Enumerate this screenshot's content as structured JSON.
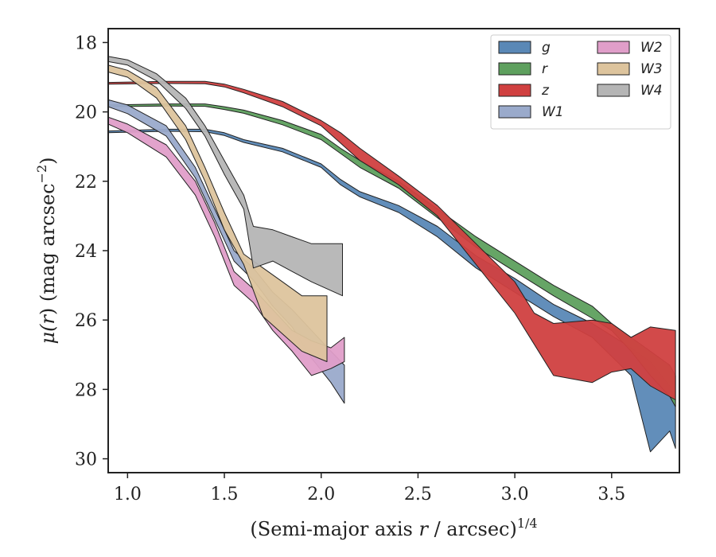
{
  "chart_data": {
    "type": "area",
    "xlabel_main": "(Semi-major axis ",
    "xlabel_var": "r",
    "xlabel_tail": " / arcsec)",
    "xlabel_exp": "1/4",
    "ylabel_main": "μ(",
    "ylabel_var": "r",
    "ylabel_tail": ") (mag arcsec",
    "ylabel_exp": "−2",
    "ylabel_close": ")",
    "xlim": [
      0.9,
      3.85
    ],
    "ylim": [
      30.4,
      17.6
    ],
    "y_inverted": true,
    "xticks": [
      "1.0",
      "1.5",
      "2.0",
      "2.5",
      "3.0",
      "3.5"
    ],
    "xtick_values": [
      1.0,
      1.5,
      2.0,
      2.5,
      3.0,
      3.5
    ],
    "yticks": [
      "18",
      "20",
      "22",
      "24",
      "26",
      "28",
      "30"
    ],
    "ytick_values": [
      18,
      20,
      22,
      24,
      26,
      28,
      30
    ],
    "grid": false,
    "legend_position": "top-right",
    "series": [
      {
        "name": "g",
        "color": "#5a88b6",
        "upper": [
          [
            0.9,
            20.55
          ],
          [
            1.2,
            20.5
          ],
          [
            1.4,
            20.5
          ],
          [
            1.5,
            20.6
          ],
          [
            1.6,
            20.8
          ],
          [
            1.8,
            21.05
          ],
          [
            2.0,
            21.5
          ],
          [
            2.1,
            21.95
          ],
          [
            2.2,
            22.3
          ],
          [
            2.4,
            22.7
          ],
          [
            2.6,
            23.3
          ],
          [
            2.8,
            24.15
          ],
          [
            3.0,
            24.8
          ],
          [
            3.2,
            25.55
          ],
          [
            3.4,
            26.1
          ],
          [
            3.6,
            26.8
          ],
          [
            3.7,
            27.2
          ],
          [
            3.8,
            27.9
          ],
          [
            3.83,
            28.3
          ]
        ],
        "lower": [
          [
            0.9,
            20.6
          ],
          [
            1.2,
            20.56
          ],
          [
            1.4,
            20.57
          ],
          [
            1.5,
            20.68
          ],
          [
            1.6,
            20.88
          ],
          [
            1.8,
            21.15
          ],
          [
            2.0,
            21.6
          ],
          [
            2.1,
            22.1
          ],
          [
            2.2,
            22.45
          ],
          [
            2.4,
            22.9
          ],
          [
            2.6,
            23.6
          ],
          [
            2.8,
            24.5
          ],
          [
            3.0,
            25.2
          ],
          [
            3.2,
            25.9
          ],
          [
            3.4,
            26.5
          ],
          [
            3.6,
            27.6
          ],
          [
            3.7,
            29.8
          ],
          [
            3.8,
            29.2
          ],
          [
            3.83,
            29.7
          ]
        ]
      },
      {
        "name": "r",
        "color": "#5ea05e",
        "upper": [
          [
            0.9,
            19.8
          ],
          [
            1.2,
            19.77
          ],
          [
            1.4,
            19.77
          ],
          [
            1.5,
            19.85
          ],
          [
            1.6,
            19.95
          ],
          [
            1.8,
            20.25
          ],
          [
            2.0,
            20.65
          ],
          [
            2.1,
            21.05
          ],
          [
            2.2,
            21.4
          ],
          [
            2.4,
            22.0
          ],
          [
            2.6,
            22.8
          ],
          [
            2.8,
            23.6
          ],
          [
            3.0,
            24.3
          ],
          [
            3.2,
            25.0
          ],
          [
            3.4,
            25.6
          ],
          [
            3.5,
            26.1
          ],
          [
            3.6,
            26.5
          ],
          [
            3.7,
            26.9
          ],
          [
            3.8,
            27.3
          ],
          [
            3.83,
            27.6
          ]
        ],
        "lower": [
          [
            0.9,
            19.85
          ],
          [
            1.2,
            19.83
          ],
          [
            1.4,
            19.84
          ],
          [
            1.5,
            19.93
          ],
          [
            1.6,
            20.04
          ],
          [
            1.8,
            20.37
          ],
          [
            2.0,
            20.8
          ],
          [
            2.1,
            21.2
          ],
          [
            2.2,
            21.6
          ],
          [
            2.4,
            22.2
          ],
          [
            2.6,
            23.05
          ],
          [
            2.8,
            23.9
          ],
          [
            3.0,
            24.6
          ],
          [
            3.2,
            25.3
          ],
          [
            3.4,
            25.95
          ],
          [
            3.5,
            26.3
          ],
          [
            3.6,
            26.9
          ],
          [
            3.7,
            27.6
          ],
          [
            3.8,
            28.2
          ],
          [
            3.83,
            28.5
          ]
        ]
      },
      {
        "name": "z",
        "color": "#d04040",
        "upper": [
          [
            0.9,
            19.15
          ],
          [
            1.2,
            19.12
          ],
          [
            1.4,
            19.12
          ],
          [
            1.5,
            19.2
          ],
          [
            1.6,
            19.35
          ],
          [
            1.8,
            19.7
          ],
          [
            2.0,
            20.25
          ],
          [
            2.1,
            20.6
          ],
          [
            2.2,
            21.05
          ],
          [
            2.4,
            21.85
          ],
          [
            2.6,
            22.7
          ],
          [
            2.8,
            23.8
          ],
          [
            3.0,
            24.9
          ],
          [
            3.1,
            25.8
          ],
          [
            3.2,
            26.1
          ],
          [
            3.4,
            26.0
          ],
          [
            3.5,
            26.1
          ],
          [
            3.6,
            26.5
          ],
          [
            3.7,
            26.2
          ],
          [
            3.83,
            26.3
          ]
        ],
        "lower": [
          [
            0.9,
            19.2
          ],
          [
            1.2,
            19.18
          ],
          [
            1.4,
            19.19
          ],
          [
            1.5,
            19.28
          ],
          [
            1.6,
            19.45
          ],
          [
            1.8,
            19.85
          ],
          [
            2.0,
            20.4
          ],
          [
            2.1,
            20.9
          ],
          [
            2.2,
            21.4
          ],
          [
            2.4,
            22.1
          ],
          [
            2.6,
            23.0
          ],
          [
            2.8,
            24.4
          ],
          [
            3.0,
            25.8
          ],
          [
            3.1,
            26.7
          ],
          [
            3.2,
            27.6
          ],
          [
            3.4,
            27.8
          ],
          [
            3.5,
            27.5
          ],
          [
            3.6,
            27.4
          ],
          [
            3.7,
            27.9
          ],
          [
            3.83,
            28.3
          ]
        ]
      },
      {
        "name": "W1",
        "color": "#9aaacb",
        "upper": [
          [
            0.9,
            19.65
          ],
          [
            1.0,
            19.8
          ],
          [
            1.2,
            20.4
          ],
          [
            1.35,
            21.6
          ],
          [
            1.45,
            22.8
          ],
          [
            1.55,
            24.0
          ],
          [
            1.65,
            24.5
          ],
          [
            1.75,
            25.2
          ],
          [
            1.85,
            25.7
          ],
          [
            1.95,
            26.3
          ],
          [
            2.05,
            26.9
          ],
          [
            2.12,
            27.3
          ]
        ],
        "lower": [
          [
            0.9,
            19.85
          ],
          [
            1.0,
            20.05
          ],
          [
            1.2,
            20.7
          ],
          [
            1.35,
            21.9
          ],
          [
            1.45,
            23.1
          ],
          [
            1.55,
            24.3
          ],
          [
            1.65,
            24.85
          ],
          [
            1.75,
            25.6
          ],
          [
            1.85,
            26.2
          ],
          [
            1.95,
            27.1
          ],
          [
            2.05,
            27.8
          ],
          [
            2.12,
            28.4
          ]
        ]
      },
      {
        "name": "W2",
        "color": "#e09ec9",
        "upper": [
          [
            0.9,
            20.15
          ],
          [
            1.0,
            20.35
          ],
          [
            1.2,
            20.95
          ],
          [
            1.35,
            22.0
          ],
          [
            1.45,
            23.2
          ],
          [
            1.55,
            24.6
          ],
          [
            1.65,
            25.1
          ],
          [
            1.75,
            25.7
          ],
          [
            1.85,
            26.3
          ],
          [
            1.95,
            26.6
          ],
          [
            2.05,
            26.8
          ],
          [
            2.12,
            26.5
          ]
        ],
        "lower": [
          [
            0.9,
            20.35
          ],
          [
            1.0,
            20.6
          ],
          [
            1.2,
            21.3
          ],
          [
            1.35,
            22.4
          ],
          [
            1.45,
            23.6
          ],
          [
            1.55,
            25.0
          ],
          [
            1.65,
            25.5
          ],
          [
            1.75,
            26.3
          ],
          [
            1.85,
            26.9
          ],
          [
            1.95,
            27.6
          ],
          [
            2.05,
            27.4
          ],
          [
            2.12,
            27.2
          ]
        ]
      },
      {
        "name": "W3",
        "color": "#ddc49d",
        "upper": [
          [
            0.9,
            18.65
          ],
          [
            1.0,
            18.8
          ],
          [
            1.15,
            19.3
          ],
          [
            1.3,
            20.4
          ],
          [
            1.4,
            21.6
          ],
          [
            1.5,
            22.9
          ],
          [
            1.6,
            24.1
          ],
          [
            1.7,
            24.5
          ],
          [
            1.8,
            24.9
          ],
          [
            1.9,
            25.3
          ],
          [
            2.03,
            25.3
          ]
        ],
        "lower": [
          [
            0.9,
            18.85
          ],
          [
            1.0,
            19.0
          ],
          [
            1.15,
            19.6
          ],
          [
            1.3,
            20.8
          ],
          [
            1.4,
            22.0
          ],
          [
            1.5,
            23.4
          ],
          [
            1.6,
            24.4
          ],
          [
            1.7,
            25.9
          ],
          [
            1.8,
            26.4
          ],
          [
            1.9,
            26.9
          ],
          [
            2.03,
            27.2
          ]
        ]
      },
      {
        "name": "W4",
        "color": "#b5b5b5",
        "upper": [
          [
            0.9,
            18.4
          ],
          [
            1.0,
            18.5
          ],
          [
            1.15,
            18.9
          ],
          [
            1.3,
            19.6
          ],
          [
            1.4,
            20.4
          ],
          [
            1.5,
            21.4
          ],
          [
            1.6,
            22.4
          ],
          [
            1.65,
            23.3
          ],
          [
            1.75,
            23.4
          ],
          [
            1.85,
            23.6
          ],
          [
            1.95,
            23.8
          ],
          [
            2.11,
            23.8
          ]
        ],
        "lower": [
          [
            0.9,
            18.55
          ],
          [
            1.0,
            18.65
          ],
          [
            1.15,
            19.1
          ],
          [
            1.3,
            19.9
          ],
          [
            1.4,
            20.7
          ],
          [
            1.5,
            21.8
          ],
          [
            1.6,
            22.8
          ],
          [
            1.65,
            24.5
          ],
          [
            1.75,
            24.3
          ],
          [
            1.85,
            24.6
          ],
          [
            1.95,
            24.9
          ],
          [
            2.11,
            25.3
          ]
        ]
      }
    ]
  }
}
